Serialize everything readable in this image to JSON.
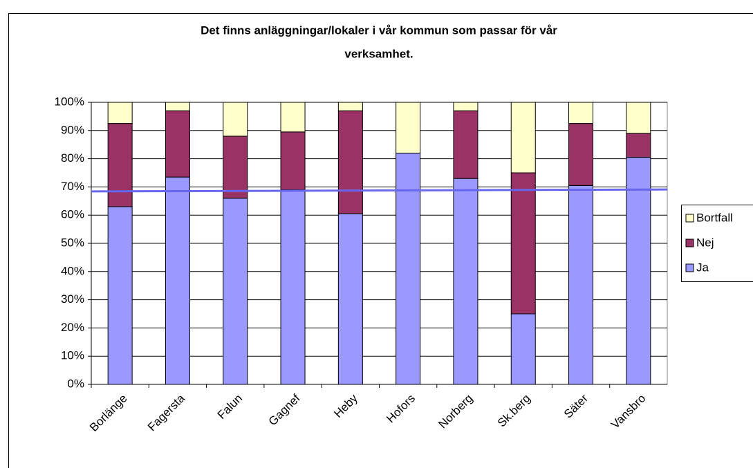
{
  "chart_data": {
    "type": "stacked_bar",
    "title": [
      "Det finns anläggningar/lokaler i vår kommun som passar för vår",
      "verksamhet."
    ],
    "categories": [
      "Borlänge",
      "Fagersta",
      "Falun",
      "Gagnef",
      "Heby",
      "Hofors",
      "Norberg",
      "Sk.berg",
      "Säter",
      "Vansbro"
    ],
    "series": [
      {
        "name": "Ja",
        "color": "#9999ff",
        "values": [
          63,
          73.5,
          66,
          69,
          60.5,
          82,
          73,
          25,
          70.5,
          80.5
        ]
      },
      {
        "name": "Nej",
        "color": "#993366",
        "values": [
          29.5,
          23.5,
          22,
          20.5,
          36.5,
          0,
          24,
          50,
          22,
          8.5
        ]
      },
      {
        "name": "Bortfall",
        "color": "#ffffcc",
        "values": [
          7.5,
          3,
          12,
          10.5,
          3,
          18,
          3,
          25,
          7.5,
          11
        ]
      }
    ],
    "reference_line": {
      "color": "#6666ee",
      "values": [
        68.4,
        69.1
      ]
    },
    "ylim": [
      0,
      100
    ],
    "yticks": [
      {
        "value": 0,
        "label": "0%"
      },
      {
        "value": 10,
        "label": "10%"
      },
      {
        "value": 20,
        "label": "20%"
      },
      {
        "value": 30,
        "label": "30%"
      },
      {
        "value": 40,
        "label": "40%"
      },
      {
        "value": 50,
        "label": "50%"
      },
      {
        "value": 60,
        "label": "60%"
      },
      {
        "value": 70,
        "label": "70%"
      },
      {
        "value": 80,
        "label": "80%"
      },
      {
        "value": 90,
        "label": "90%"
      },
      {
        "value": 100,
        "label": "100%"
      }
    ],
    "grid": true,
    "legend": "right"
  }
}
